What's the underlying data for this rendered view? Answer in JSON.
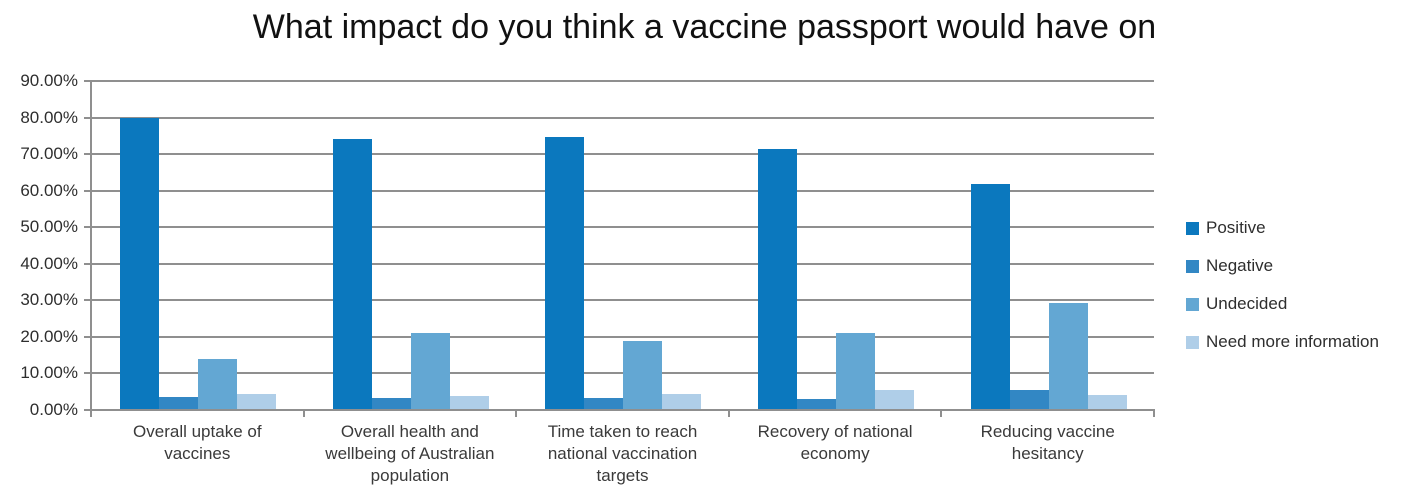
{
  "title": "What impact do you think a vaccine passport would have on",
  "colors": {
    "series_positive": "#0b78be",
    "series_negative": "#3287c4",
    "series_undecided": "#63a7d3",
    "series_need_more_information": "#afcee8",
    "gridline": "#8f8f8f",
    "text": "#2e2e2e"
  },
  "chart_data": {
    "type": "bar",
    "title": "What impact do you think a vaccine passport would have on",
    "categories": [
      "Overall uptake of vaccines",
      "Overall health and wellbeing of Australian population",
      "Time taken to reach national vaccination targets",
      "Recovery of national economy",
      "Reducing vaccine hesitancy"
    ],
    "series": [
      {
        "name": "Positive",
        "color": "#0b78be",
        "values": [
          79.6,
          74.0,
          74.4,
          71.2,
          61.6
        ]
      },
      {
        "name": "Negative",
        "color": "#3287c4",
        "values": [
          3.2,
          2.9,
          3.1,
          2.8,
          5.2
        ]
      },
      {
        "name": "Undecided",
        "color": "#63a7d3",
        "values": [
          13.6,
          20.8,
          18.6,
          20.9,
          29.0
        ]
      },
      {
        "name": "Need more information",
        "color": "#afcee8",
        "values": [
          4.0,
          3.5,
          4.2,
          5.2,
          3.9
        ]
      }
    ],
    "y_ticks": [
      "90.00%",
      "80.00%",
      "70.00%",
      "60.00%",
      "50.00%",
      "40.00%",
      "30.00%",
      "20.00%",
      "10.00%",
      "0.00%"
    ],
    "ylim": [
      0,
      90
    ],
    "xlabel": "",
    "ylabel": "",
    "grid": "horizontal",
    "legend_position": "right"
  }
}
